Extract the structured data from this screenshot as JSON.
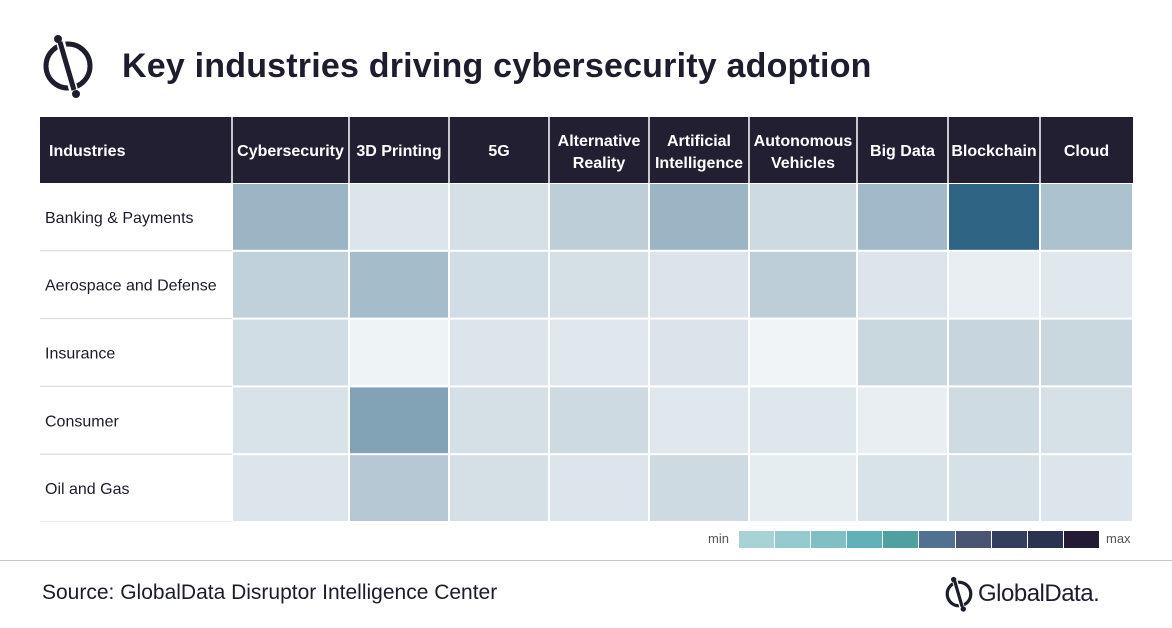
{
  "header": {
    "title": "Key industries driving cybersecurity adoption"
  },
  "chart_data": {
    "type": "heatmap",
    "title": "Key industries driving cybersecurity adoption",
    "row_header": "Industries",
    "columns": [
      "Cybersecurity",
      "3D Printing",
      "5G",
      "Alternative Reality",
      "Artificial Intelligence",
      "Autonomous Vehicles",
      "Big Data",
      "Blockchain",
      "Cloud"
    ],
    "rows": [
      "Banking & Payments",
      "Aerospace and Defense",
      "Insurance",
      "Consumer",
      "Oil and Gas"
    ],
    "values": [
      [
        0.45,
        0.12,
        0.16,
        0.28,
        0.45,
        0.2,
        0.42,
        1.0,
        0.36
      ],
      [
        0.26,
        0.4,
        0.18,
        0.16,
        0.13,
        0.28,
        0.12,
        0.06,
        0.1
      ],
      [
        0.18,
        0.03,
        0.12,
        0.1,
        0.13,
        0.02,
        0.22,
        0.23,
        0.22
      ],
      [
        0.14,
        0.58,
        0.16,
        0.2,
        0.1,
        0.11,
        0.06,
        0.19,
        0.15
      ],
      [
        0.12,
        0.32,
        0.16,
        0.12,
        0.2,
        0.07,
        0.14,
        0.15,
        0.12
      ]
    ],
    "scale_min_color": "#f4f7f9",
    "scale_max_color": "#2f6484",
    "legend": {
      "min_label": "min",
      "max_label": "max",
      "position": "bottom-right",
      "colors": [
        "#a7d3d6",
        "#95cbcf",
        "#80c0c5",
        "#61b1b7",
        "#50a09f",
        "#50718f",
        "#4a5573",
        "#343e5d",
        "#2a3450",
        "#231b33"
      ]
    }
  },
  "colors": {
    "header_bg": "#231f33",
    "header_text": "#ffffff",
    "text": "#1b1b2b"
  },
  "footer": {
    "source": "Source: GlobalData Disruptor Intelligence Center",
    "brand": "GlobalData."
  }
}
